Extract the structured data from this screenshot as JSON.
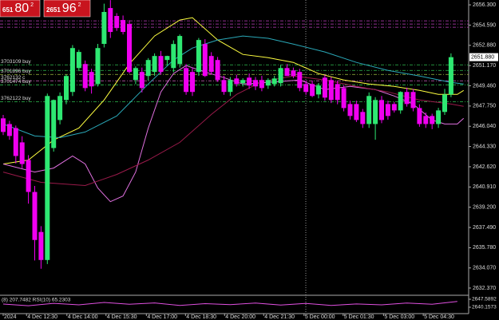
{
  "chart_data": {
    "type": "candlestick",
    "quote_boxes": [
      {
        "small": "651",
        "big": "80",
        "sup": "2"
      },
      {
        "small": "2651",
        "big": "96",
        "sup": "2"
      }
    ],
    "ylim": [
      2631.76,
      2656.71
    ],
    "yticks": [
      {
        "value": 2656.3,
        "label": "2656.300"
      },
      {
        "value": 2654.59,
        "label": "2654.590"
      },
      {
        "value": 2652.88,
        "label": "2652.880"
      },
      {
        "value": 2651.17,
        "label": "2651.170"
      },
      {
        "value": 2649.46,
        "label": "2649.460"
      },
      {
        "value": 2647.75,
        "label": "2647.750"
      },
      {
        "value": 2646.04,
        "label": "2646.040"
      },
      {
        "value": 2644.33,
        "label": "2644.330"
      },
      {
        "value": 2642.62,
        "label": "2642.620"
      },
      {
        "value": 2640.91,
        "label": "2640.910"
      },
      {
        "value": 2639.2,
        "label": "2639.200"
      },
      {
        "value": 2637.49,
        "label": "2637.490"
      },
      {
        "value": 2635.78,
        "label": "2635.780"
      },
      {
        "value": 2634.07,
        "label": "2634.070"
      },
      {
        "value": 2632.37,
        "label": "2632.370"
      }
    ],
    "xticks": [
      {
        "value": 0,
        "label": "2024"
      },
      {
        "value": 3.7,
        "label": "4 Dec 12:30"
      },
      {
        "value": 10.1,
        "label": "4 Dec 14:00"
      },
      {
        "value": 16.3,
        "label": "4 Dec 15:30"
      },
      {
        "value": 22.7,
        "label": "4 Dec 17:00"
      },
      {
        "value": 28.9,
        "label": "4 Dec 18:30"
      },
      {
        "value": 35.1,
        "label": "4 Dec 20:00"
      },
      {
        "value": 41.3,
        "label": "4 Dec 21:30"
      },
      {
        "value": 47.7,
        "label": "5 Dec 00:00"
      },
      {
        "value": 53.9,
        "label": "5 Dec 01:30"
      },
      {
        "value": 60.3,
        "label": "5 Dec 03:00"
      },
      {
        "value": 66.6,
        "label": "5 Dec 04:30"
      }
    ],
    "up_color": "#2ee872",
    "down_color": "#f000f0",
    "ohlc": [
      [
        2646.71,
        2647.0,
        2645.3,
        2645.56
      ],
      [
        2646.23,
        2646.5,
        2644.9,
        2645.22
      ],
      [
        2645.89,
        2646.1,
        2642.9,
        2643.53
      ],
      [
        2644.68,
        2645.2,
        2642.5,
        2642.85
      ],
      [
        2643.19,
        2643.6,
        2639.5,
        2640.49
      ],
      [
        2640.49,
        2641.0,
        2634.7,
        2636.43
      ],
      [
        2637.11,
        2637.6,
        2634.0,
        2634.74
      ],
      [
        2634.74,
        2648.8,
        2634.4,
        2648.6
      ],
      [
        2644.2,
        2648.3,
        2643.9,
        2648.26
      ],
      [
        2646.57,
        2648.9,
        2646.2,
        2648.6
      ],
      [
        2648.26,
        2650.4,
        2647.9,
        2650.29
      ],
      [
        2648.94,
        2652.9,
        2648.6,
        2652.65
      ],
      [
        2650.96,
        2652.5,
        2650.7,
        2652.32
      ],
      [
        2651.3,
        2651.6,
        2649.0,
        2649.27
      ],
      [
        2650.63,
        2650.9,
        2648.8,
        2649.41
      ],
      [
        2649.61,
        2653.0,
        2649.4,
        2652.65
      ],
      [
        2653.0,
        2656.4,
        2652.7,
        2655.7
      ],
      [
        2656.03,
        2656.7,
        2653.5,
        2654.01
      ],
      [
        2655.36,
        2655.6,
        2654.1,
        2654.34
      ],
      [
        2655.02,
        2655.4,
        2653.8,
        2654.01
      ],
      [
        2654.68,
        2655.0,
        2650.5,
        2650.63
      ],
      [
        2649.95,
        2651.1,
        2649.6,
        2650.96
      ],
      [
        2650.63,
        2651.0,
        2648.9,
        2649.27
      ],
      [
        2650.29,
        2651.8,
        2649.9,
        2651.64
      ],
      [
        2650.63,
        2652.2,
        2650.3,
        2651.98
      ],
      [
        2651.98,
        2652.4,
        2650.4,
        2650.63
      ],
      [
        2651.64,
        2652.0,
        2651.2,
        2651.98
      ],
      [
        2650.96,
        2653.3,
        2650.6,
        2652.99
      ],
      [
        2651.3,
        2653.8,
        2651.0,
        2653.67
      ],
      [
        2650.96,
        2651.3,
        2648.7,
        2648.94
      ],
      [
        2650.63,
        2651.0,
        2648.6,
        2648.94
      ],
      [
        2650.63,
        2653.5,
        2650.3,
        2653.33
      ],
      [
        2652.99,
        2653.4,
        2650.2,
        2650.29
      ],
      [
        2651.98,
        2652.3,
        2650.4,
        2650.63
      ],
      [
        2651.64,
        2651.9,
        2649.8,
        2649.95
      ],
      [
        2649.95,
        2650.3,
        2648.7,
        2648.94
      ],
      [
        2648.94,
        2650.2,
        2648.6,
        2649.95
      ],
      [
        2650.08,
        2650.4,
        2649.4,
        2649.61
      ],
      [
        2649.68,
        2650.1,
        2649.4,
        2649.95
      ],
      [
        2650.15,
        2650.5,
        2649.2,
        2649.48
      ],
      [
        2649.95,
        2650.2,
        2649.1,
        2649.41
      ],
      [
        2649.95,
        2650.3,
        2649.0,
        2649.27
      ],
      [
        2649.48,
        2650.1,
        2649.2,
        2649.95
      ],
      [
        2649.61,
        2650.3,
        2649.4,
        2650.08
      ],
      [
        2649.68,
        2651.2,
        2649.4,
        2650.96
      ],
      [
        2650.96,
        2651.3,
        2650.3,
        2650.29
      ],
      [
        2650.76,
        2651.0,
        2650.1,
        2650.29
      ],
      [
        2650.63,
        2650.9,
        2649.0,
        2649.27
      ],
      [
        2649.61,
        2649.9,
        2648.7,
        2648.94
      ],
      [
        2649.61,
        2649.9,
        2648.5,
        2648.6
      ],
      [
        2648.73,
        2649.7,
        2648.4,
        2649.48
      ],
      [
        2650.15,
        2650.4,
        2648.2,
        2648.46
      ],
      [
        2649.95,
        2650.2,
        2648.0,
        2648.26
      ],
      [
        2649.61,
        2649.9,
        2647.9,
        2648.26
      ],
      [
        2649.27,
        2649.5,
        2647.3,
        2647.58
      ],
      [
        2647.92,
        2648.2,
        2646.6,
        2646.91
      ],
      [
        2647.92,
        2648.2,
        2646.4,
        2646.57
      ],
      [
        2647.25,
        2647.5,
        2645.9,
        2646.23
      ],
      [
        2646.23,
        2648.9,
        2645.9,
        2648.6
      ],
      [
        2646.23,
        2648.5,
        2644.9,
        2648.26
      ],
      [
        2648.26,
        2648.6,
        2646.3,
        2646.57
      ],
      [
        2647.92,
        2648.2,
        2646.6,
        2646.91
      ],
      [
        2647.92,
        2648.1,
        2647.2,
        2647.38
      ],
      [
        2647.38,
        2649.0,
        2647.1,
        2648.94
      ],
      [
        2648.94,
        2649.3,
        2647.7,
        2647.92
      ],
      [
        2648.94,
        2649.2,
        2647.3,
        2647.58
      ],
      [
        2647.58,
        2647.9,
        2646.0,
        2646.23
      ],
      [
        2646.91,
        2647.2,
        2645.9,
        2646.23
      ],
      [
        2646.91,
        2647.1,
        2645.8,
        2646.23
      ],
      [
        2646.23,
        2647.6,
        2645.9,
        2647.38
      ],
      [
        2647.25,
        2649.2,
        2647.0,
        2648.73
      ],
      [
        2648.73,
        2652.2,
        2648.5,
        2651.88
      ]
    ],
    "indicators": [
      {
        "color": "#ffff40",
        "x": [
          0,
          4,
          8,
          12,
          16,
          20,
          24,
          28,
          30,
          34,
          38,
          42,
          46,
          50,
          54,
          58,
          62,
          66,
          69,
          72,
          73
        ],
        "values": [
          2642.85,
          2643.19,
          2644.88,
          2645.89,
          2648.26,
          2651.3,
          2653.67,
          2655.02,
          2655.22,
          2653.33,
          2652.11,
          2651.84,
          2651.44,
          2650.49,
          2649.95,
          2649.61,
          2649.41,
          2649.07,
          2648.73,
          2648.73,
          2649.07
        ]
      },
      {
        "color": "#2aa8b8",
        "x": [
          0,
          5,
          9,
          13,
          18,
          23,
          27,
          30,
          34,
          38,
          42,
          46,
          51,
          56,
          61,
          66,
          71,
          73
        ],
        "values": [
          2646.23,
          2645.22,
          2645.08,
          2645.56,
          2646.91,
          2649.61,
          2651.64,
          2652.65,
          2653.33,
          2653.67,
          2653.47,
          2652.99,
          2652.32,
          2651.44,
          2650.76,
          2650.29,
          2649.75,
          2649.61
        ]
      },
      {
        "color": "#e070e0",
        "x": [
          0,
          5,
          8,
          11,
          13,
          15,
          17,
          19,
          21,
          23,
          25,
          27,
          29,
          32,
          35,
          38,
          42,
          47,
          51,
          55,
          59,
          62,
          65,
          68,
          70,
          72,
          73
        ],
        "values": [
          2642.85,
          2642.17,
          2642.51,
          2643.53,
          2642.85,
          2640.82,
          2639.67,
          2640.15,
          2642.17,
          2645.89,
          2648.94,
          2650.49,
          2651.17,
          2650.63,
          2650.15,
          2649.61,
          2649.75,
          2649.95,
          2649.14,
          2649.41,
          2649.14,
          2648.6,
          2647.92,
          2646.57,
          2646.23,
          2646.23,
          2646.71
        ]
      },
      {
        "color": "#9a1a4a",
        "x": [
          0,
          6,
          13,
          18,
          23,
          28,
          33,
          37,
          41,
          46,
          51,
          56,
          61,
          66,
          71,
          73
        ],
        "values": [
          2642.17,
          2641.3,
          2641.03,
          2641.97,
          2643.19,
          2644.68,
          2647.04,
          2648.73,
          2649.81,
          2650.29,
          2649.95,
          2649.41,
          2648.94,
          2648.26,
          2647.92,
          2647.72
        ]
      }
    ],
    "orders": [
      {
        "value": 2654.95,
        "color": "#c040c0"
      },
      {
        "value": 2654.68,
        "color": "#c040c0"
      },
      {
        "value": 2654.41,
        "color": "#c040c0"
      },
      {
        "label": "3703109 buy",
        "value": 2651.23,
        "color": "#2fbf4f"
      },
      {
        "value": 2650.76,
        "color": "#2fbf4f"
      },
      {
        "label": "3701896 buy",
        "value": 2650.42,
        "color": "#a0c040"
      },
      {
        "label": "3762132 c",
        "value": 2649.88,
        "color": "#d060c0"
      },
      {
        "label": "3701474 buy",
        "value": 2649.54,
        "color": "#2fbf4f"
      },
      {
        "label": "3762122 buy",
        "value": 2648.12,
        "color": "#2fbf4f"
      }
    ],
    "last_price": {
      "value": 2651.88,
      "label": "2651.880"
    },
    "sub_panel": {
      "label": "(8) 207.7482  RSI(10) 65.2303",
      "ylim": [
        2634.96,
        2651.3
      ],
      "yticks": [
        {
          "value": 2647.5892,
          "label": "2647.5892"
        },
        {
          "value": 2640.1573,
          "label": "2640.1573"
        }
      ],
      "color": "#e050e0",
      "x": [
        0,
        4,
        8,
        12,
        16,
        20,
        24,
        28,
        32,
        36,
        40,
        44,
        48,
        52,
        56,
        60,
        64,
        68,
        72
      ],
      "values": [
        2643.1,
        2641.6,
        2643.8,
        2642.4,
        2644.6,
        2642.9,
        2644.2,
        2641.8,
        2643.5,
        2642.6,
        2644.0,
        2642.2,
        2643.7,
        2641.9,
        2643.2,
        2642.4,
        2644.1,
        2643.0,
        2645.6
      ]
    }
  }
}
